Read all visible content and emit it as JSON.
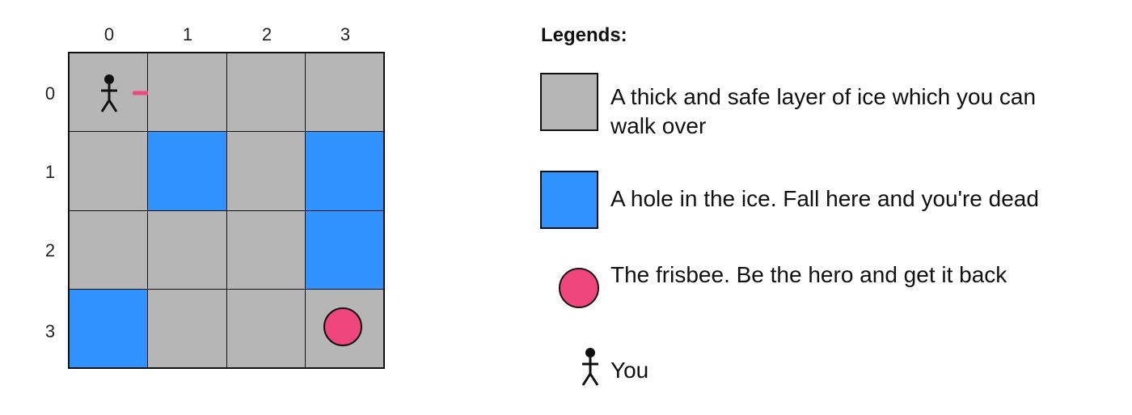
{
  "grid": {
    "col_labels": [
      "0",
      "1",
      "2",
      "3"
    ],
    "row_labels": [
      "0",
      "1",
      "2",
      "3"
    ],
    "cells": [
      [
        "ice",
        "ice",
        "ice",
        "ice"
      ],
      [
        "ice",
        "hole",
        "ice",
        "hole"
      ],
      [
        "ice",
        "ice",
        "ice",
        "hole"
      ],
      [
        "hole",
        "ice",
        "ice",
        "ice"
      ]
    ],
    "player_position": [
      0,
      0
    ],
    "frisbee_position": [
      3,
      3
    ],
    "action_arrow": "right"
  },
  "legend": {
    "title": "Legends:",
    "ice_text": "A thick and safe layer of ice which you can walk over",
    "hole_text": "A hole in the ice. Fall here and you're dead",
    "frisbee_text": "The frisbee. Be the hero and get it back",
    "you_text": "You"
  },
  "colors": {
    "ice": "#b6b6b6",
    "hole": "#3193ff",
    "frisbee": "#f0467e",
    "arrow": "#f0467e"
  }
}
